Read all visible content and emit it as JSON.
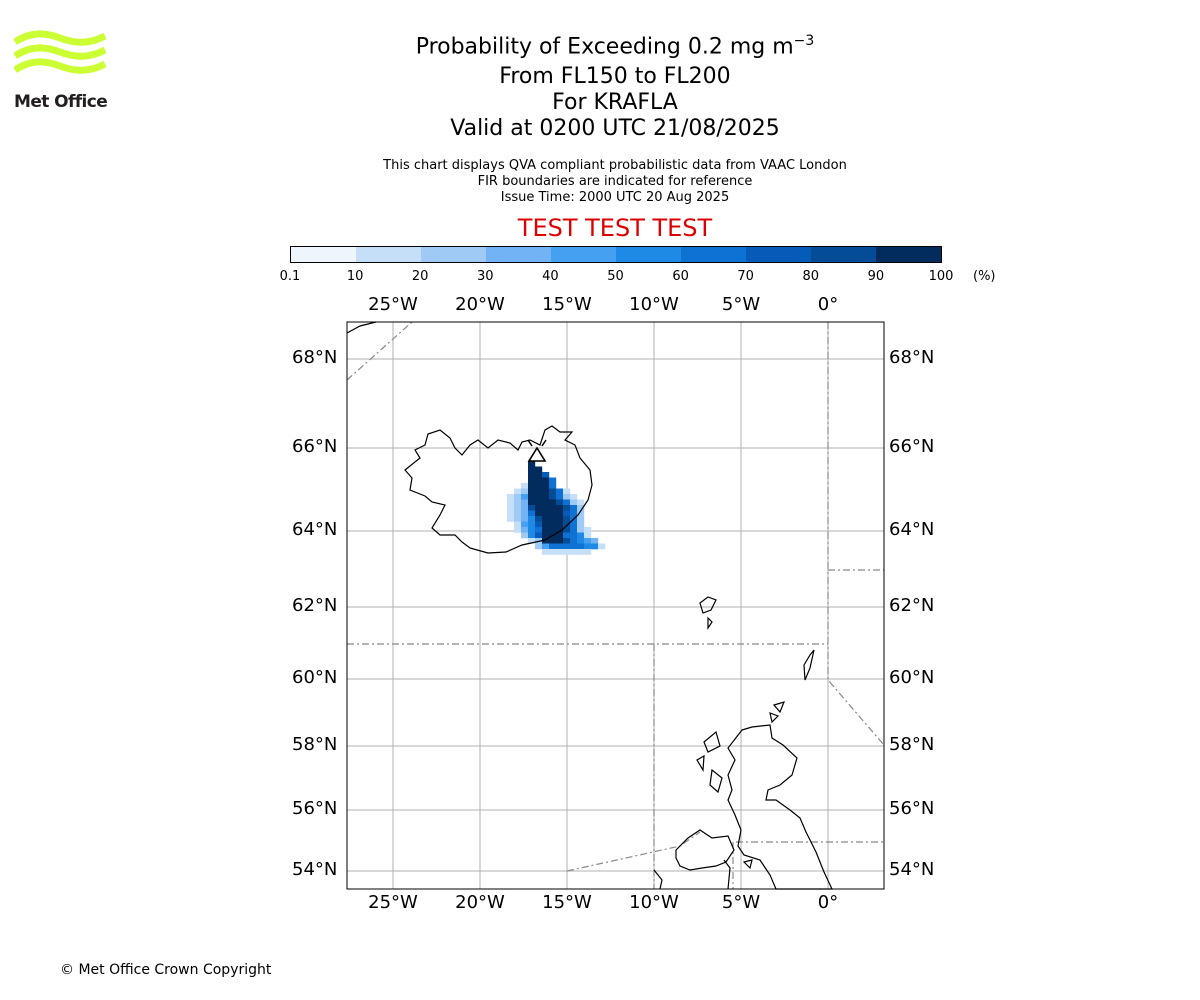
{
  "branding": {
    "logo_text": "Met Office",
    "logo_color": "#ccff33"
  },
  "header": {
    "title_prefix": "Probability of Exceeding 0.2 mg m",
    "title_exponent": "−3",
    "flight_levels": "From FL150 to FL200",
    "volcano": "For KRAFLA",
    "valid_time": "Valid at 0200 UTC 21/08/2025",
    "info_line1": "This chart displays QVA compliant probabilistic data from VAAC London",
    "info_line2": "FIR boundaries are indicated for reference",
    "issue_time": "Issue Time: 2000 UTC 20 Aug 2025",
    "test_banner": "TEST TEST TEST",
    "test_color": "#dd0000"
  },
  "colorbar": {
    "ticks": [
      "0.1",
      "10",
      "20",
      "30",
      "40",
      "50",
      "60",
      "70",
      "80",
      "90",
      "100"
    ],
    "unit": "(%)",
    "colors": [
      "#eef5fd",
      "#c6dff8",
      "#9fcaf6",
      "#71b3f4",
      "#46a0f2",
      "#1f8ae6",
      "#0e72d4",
      "#075bb8",
      "#044c96",
      "#022b5e"
    ]
  },
  "map": {
    "lon_labels": [
      "25°W",
      "20°W",
      "15°W",
      "10°W",
      "5°W",
      "0°"
    ],
    "lat_labels": [
      "68°N",
      "66°N",
      "64°N",
      "62°N",
      "60°N",
      "58°N",
      "56°N",
      "54°N"
    ],
    "volcano_marker": "triangle-icon"
  },
  "footer": {
    "copyright": "© Met Office Crown Copyright"
  }
}
